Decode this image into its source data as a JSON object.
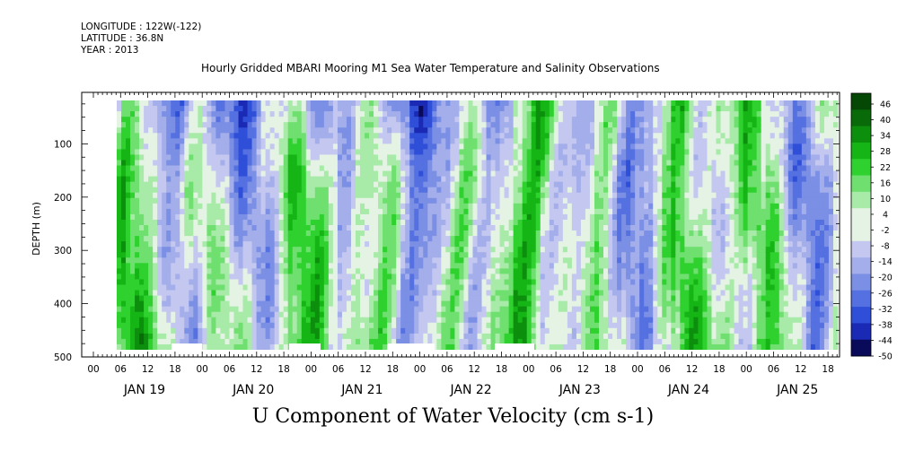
{
  "header": {
    "longitude": "LONGITUDE : 122W(-122)",
    "latitude": "LATITUDE : 36.8N",
    "year": "YEAR : 2013"
  },
  "chart_data": {
    "type": "heatmap",
    "title": "Hourly Gridded MBARI Mooring M1 Sea Water Temperature and Salinity Observations",
    "variable_label": "U Component of Water Velocity (cm s-1)",
    "ylabel": "DEPTH (m)",
    "y_ticks": [
      "100",
      "200",
      "300",
      "400",
      "500"
    ],
    "y_range": [
      500,
      0
    ],
    "hour_ticks": [
      "00",
      "06",
      "12",
      "18",
      "00",
      "06",
      "12",
      "18",
      "00",
      "06",
      "12",
      "18",
      "00",
      "06",
      "12",
      "18",
      "00",
      "06",
      "12",
      "18",
      "00",
      "06",
      "12",
      "18",
      "00",
      "06",
      "12",
      "18"
    ],
    "day_labels": [
      "JAN 19",
      "JAN 20",
      "JAN 21",
      "JAN 22",
      "JAN 23",
      "JAN 24",
      "JAN 25"
    ],
    "colorbar_levels": [
      "46",
      "40",
      "34",
      "28",
      "22",
      "16",
      "10",
      "4",
      "-2",
      "-8",
      "-14",
      "-20",
      "-26",
      "-32",
      "-38",
      "-44",
      "-50"
    ],
    "colorbar_range": [
      -50,
      46
    ],
    "colormap": [
      "#0a0a5a",
      "#1a2ab5",
      "#2f4fd8",
      "#5570e0",
      "#7b8fe5",
      "#a3aeea",
      "#c4c8f0",
      "#e4f3e4",
      "#a8eaa8",
      "#6fe06f",
      "#2fd12f",
      "#15b515",
      "#0c8f0c",
      "#086a08",
      "#054805"
    ],
    "pattern_description": ""
  }
}
